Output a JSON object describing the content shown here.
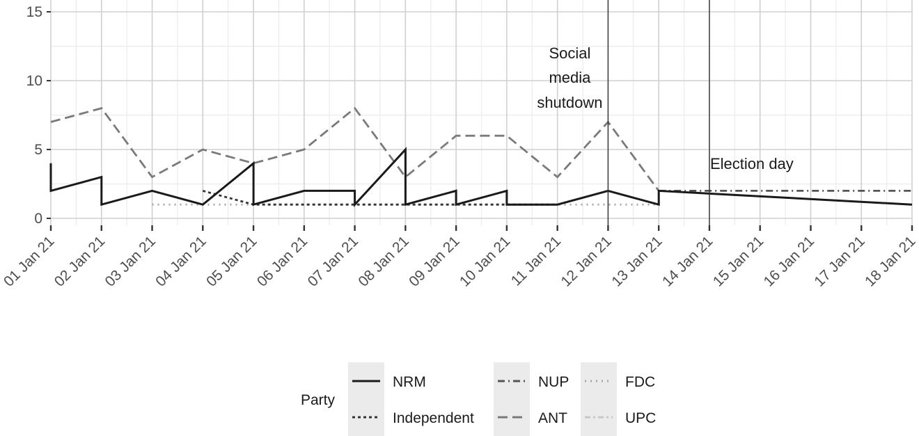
{
  "chart_data": {
    "type": "line",
    "x_ticks": [
      "01 Jan 21",
      "02 Jan 21",
      "03 Jan 21",
      "04 Jan 21",
      "05 Jan 21",
      "06 Jan 21",
      "07 Jan 21",
      "08 Jan 21",
      "09 Jan 21",
      "10 Jan 21",
      "11 Jan 21",
      "12 Jan 21",
      "13 Jan 21",
      "14 Jan 21",
      "15 Jan 21",
      "16 Jan 21",
      "17 Jan 21",
      "18 Jan 21"
    ],
    "y_ticks": [
      "0",
      "5",
      "10",
      "15"
    ],
    "ylim": [
      0,
      15
    ],
    "grid": true,
    "legend_position": "bottom",
    "legend_title": "Party",
    "annotations": [
      {
        "lines": [
          "Social",
          "media",
          "shutdown"
        ],
        "x": "12 Jan 21"
      },
      {
        "lines": [
          "Election day"
        ],
        "x": "14 Jan 21"
      }
    ],
    "series": [
      {
        "name": "NRM",
        "color": "#1a1a1a",
        "dash": "solid",
        "points": [
          [
            "01 Jan 21",
            4
          ],
          [
            "01 Jan 21",
            2
          ],
          [
            "02 Jan 21",
            3
          ],
          [
            "02 Jan 21",
            1
          ],
          [
            "03 Jan 21",
            2
          ],
          [
            "04 Jan 21",
            1
          ],
          [
            "05 Jan 21",
            4
          ],
          [
            "05 Jan 21",
            1
          ],
          [
            "06 Jan 21",
            2
          ],
          [
            "07 Jan 21",
            2
          ],
          [
            "07 Jan 21",
            1
          ],
          [
            "08 Jan 21",
            5
          ],
          [
            "08 Jan 21",
            1
          ],
          [
            "09 Jan 21",
            2
          ],
          [
            "09 Jan 21",
            1
          ],
          [
            "10 Jan 21",
            2
          ],
          [
            "10 Jan 21",
            1
          ],
          [
            "11 Jan 21",
            1
          ],
          [
            "12 Jan 21",
            2
          ],
          [
            "13 Jan 21",
            1
          ],
          [
            "13 Jan 21",
            2
          ],
          [
            "18 Jan 21",
            1
          ]
        ]
      },
      {
        "name": "Independent",
        "color": "#333333",
        "dash": "dotted",
        "points": [
          [
            "04 Jan 21",
            2
          ],
          [
            "05 Jan 21",
            1
          ],
          [
            "10 Jan 21",
            1
          ],
          [
            "11 Jan 21",
            1
          ]
        ]
      },
      {
        "name": "NUP",
        "color": "#555555",
        "dash": "dashdot",
        "points": [
          [
            "13 Jan 21",
            2
          ],
          [
            "18 Jan 21",
            2
          ]
        ]
      },
      {
        "name": "ANT",
        "color": "#7a7a7a",
        "dash": "longdash",
        "points": [
          [
            "01 Jan 21",
            7
          ],
          [
            "02 Jan 21",
            8
          ],
          [
            "03 Jan 21",
            3
          ],
          [
            "04 Jan 21",
            5
          ],
          [
            "05 Jan 21",
            4
          ],
          [
            "06 Jan 21",
            5
          ],
          [
            "07 Jan 21",
            8
          ],
          [
            "08 Jan 21",
            3
          ],
          [
            "09 Jan 21",
            6
          ],
          [
            "10 Jan 21",
            6
          ],
          [
            "11 Jan 21",
            3
          ],
          [
            "12 Jan 21",
            7
          ],
          [
            "13 Jan 21",
            2
          ]
        ]
      },
      {
        "name": "FDC",
        "color": "#a6a6a6",
        "dash": "dot",
        "points": [
          [
            "03 Jan 21",
            1
          ],
          [
            "13 Jan 21",
            1
          ]
        ]
      },
      {
        "name": "UPC",
        "color": "#c8c8c8",
        "dash": "twodash",
        "points": []
      }
    ],
    "legend": [
      [
        {
          "name": "NRM"
        },
        {
          "name": "NUP"
        },
        {
          "name": "FDC"
        }
      ],
      [
        {
          "name": "Independent"
        },
        {
          "name": "ANT"
        },
        {
          "name": "UPC"
        }
      ]
    ]
  }
}
